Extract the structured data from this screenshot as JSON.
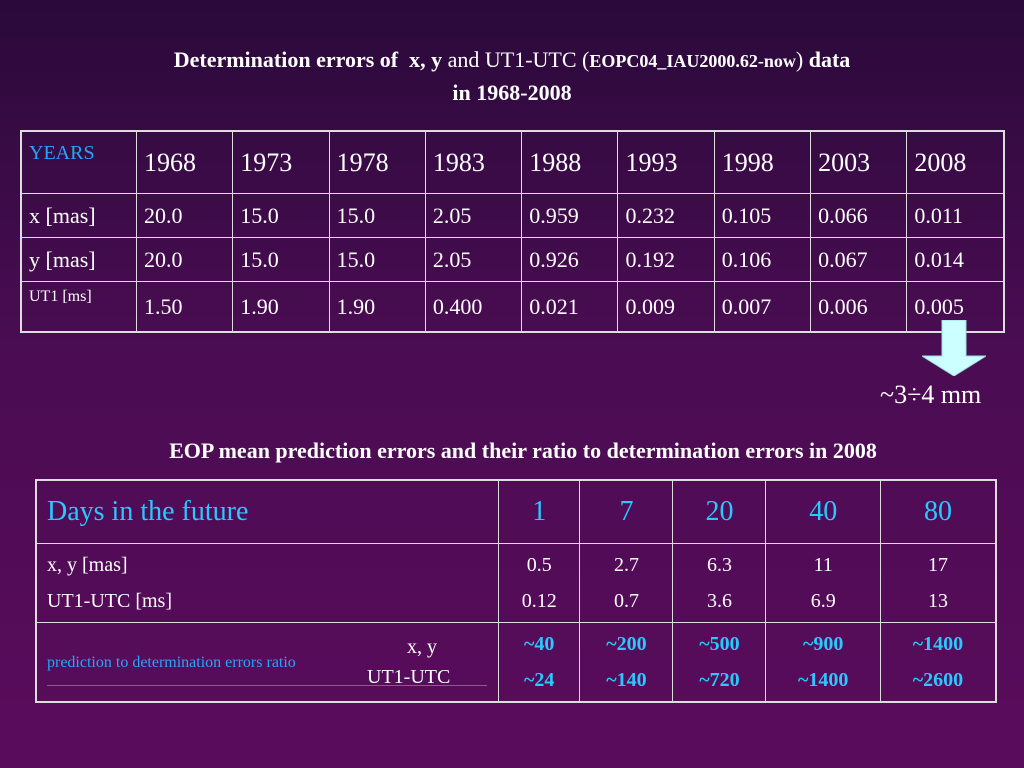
{
  "title": {
    "part1": "Determination errors of",
    "part2": "x, y",
    "part3": "and UT1-UTC (",
    "part4": "EOPC04_IAU2000.62-now",
    "part5": ")",
    "part6": "data",
    "line2": "in 1968-2008"
  },
  "table1": {
    "header_label": "YEARS",
    "years": [
      "1968",
      "1973",
      "1978",
      "1983",
      "1988",
      "1993",
      "1998",
      "2003",
      "2008"
    ],
    "rows": [
      {
        "label": "x [mas]",
        "values": [
          "20.0",
          "15.0",
          "15.0",
          "2.05",
          "0.959",
          "0.232",
          "0.105",
          "0.066",
          "0.011"
        ]
      },
      {
        "label": "y [mas]",
        "values": [
          "20.0",
          "15.0",
          "15.0",
          "2.05",
          "0.926",
          "0.192",
          "0.106",
          "0.067",
          "0.014"
        ]
      },
      {
        "label": "UT1 [ms]",
        "values": [
          "1.50",
          "1.90",
          "1.90",
          "0.400",
          "0.021",
          "0.009",
          "0.007",
          "0.006",
          "0.005"
        ]
      }
    ]
  },
  "arrow_label": "~3÷4 mm",
  "title2": "EOP mean prediction errors and their ratio to determination errors in 2008",
  "table2": {
    "header_label": "Days in the future",
    "days": [
      "1",
      "7",
      "20",
      "40",
      "80"
    ],
    "errors_labels": [
      "x, y [mas]",
      "UT1-UTC [ms]"
    ],
    "xy_errors": [
      "0.5",
      "2.7",
      "6.3",
      "11",
      "17"
    ],
    "ut1_errors": [
      "0.12",
      "0.7",
      "3.6",
      "6.9",
      "13"
    ],
    "ratio_label": "prediction to determination errors ratio",
    "ratio_xy_label": "x, y",
    "ratio_ut1_label": "UT1-UTC",
    "ratio_xy": [
      "~40",
      "~200",
      "~500",
      "~900",
      "~1400"
    ],
    "ratio_ut1": [
      "~24",
      "~140",
      "~720",
      "~1400",
      "~2600"
    ]
  },
  "colors": {
    "accent": "#29c8ff",
    "arrow_fill": "#ccffff",
    "background": "#4a0c52"
  }
}
